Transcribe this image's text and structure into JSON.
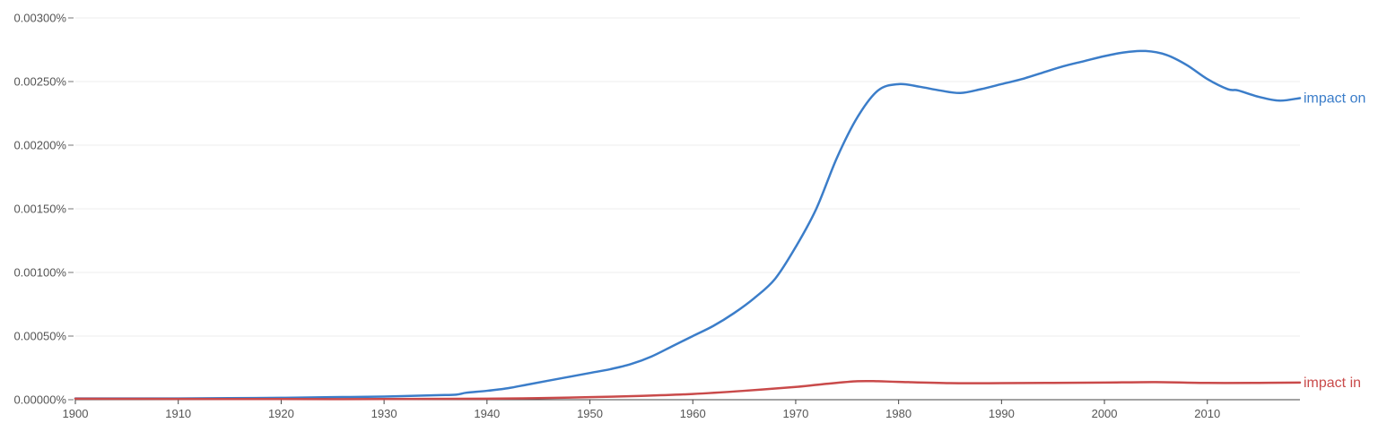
{
  "chart_data": {
    "type": "line",
    "title": "",
    "xlabel": "",
    "ylabel": "",
    "xlim": [
      1900,
      2019
    ],
    "ylim": [
      0,
      0.003
    ],
    "grid": true,
    "legend": "inline-right",
    "y_ticks": [
      {
        "value": 0.003,
        "label": "0.00300%"
      },
      {
        "value": 0.0025,
        "label": "0.00250%"
      },
      {
        "value": 0.002,
        "label": "0.00200%"
      },
      {
        "value": 0.0015,
        "label": "0.00150%"
      },
      {
        "value": 0.001,
        "label": "0.00100%"
      },
      {
        "value": 0.0005,
        "label": "0.00050%"
      },
      {
        "value": 0.0,
        "label": "0.00000%"
      }
    ],
    "x_ticks": [
      {
        "value": 1900,
        "label": "1900"
      },
      {
        "value": 1910,
        "label": "1910"
      },
      {
        "value": 1920,
        "label": "1920"
      },
      {
        "value": 1930,
        "label": "1930"
      },
      {
        "value": 1940,
        "label": "1940"
      },
      {
        "value": 1950,
        "label": "1950"
      },
      {
        "value": 1960,
        "label": "1960"
      },
      {
        "value": 1970,
        "label": "1970"
      },
      {
        "value": 1980,
        "label": "1980"
      },
      {
        "value": 1990,
        "label": "1990"
      },
      {
        "value": 2000,
        "label": "2000"
      },
      {
        "value": 2010,
        "label": "2010"
      }
    ],
    "series": [
      {
        "name": "impact on",
        "color": "#3b7dc9",
        "points": [
          [
            1900,
            1e-05
          ],
          [
            1905,
            1e-05
          ],
          [
            1910,
            1e-05
          ],
          [
            1915,
            1.2e-05
          ],
          [
            1920,
            1.5e-05
          ],
          [
            1925,
            2e-05
          ],
          [
            1930,
            2.5e-05
          ],
          [
            1935,
            3.5e-05
          ],
          [
            1937,
            4e-05
          ],
          [
            1938,
            5.5e-05
          ],
          [
            1940,
            7e-05
          ],
          [
            1942,
            9e-05
          ],
          [
            1944,
            0.00012
          ],
          [
            1946,
            0.00015
          ],
          [
            1948,
            0.00018
          ],
          [
            1950,
            0.00021
          ],
          [
            1952,
            0.00024
          ],
          [
            1954,
            0.00028
          ],
          [
            1956,
            0.00034
          ],
          [
            1958,
            0.00042
          ],
          [
            1960,
            0.0005
          ],
          [
            1962,
            0.00058
          ],
          [
            1964,
            0.00068
          ],
          [
            1966,
            0.0008
          ],
          [
            1968,
            0.00095
          ],
          [
            1970,
            0.0012
          ],
          [
            1972,
            0.0015
          ],
          [
            1974,
            0.0019
          ],
          [
            1976,
            0.00222
          ],
          [
            1978,
            0.00243
          ],
          [
            1980,
            0.00248
          ],
          [
            1982,
            0.00246
          ],
          [
            1984,
            0.00243
          ],
          [
            1986,
            0.00241
          ],
          [
            1988,
            0.00244
          ],
          [
            1990,
            0.00248
          ],
          [
            1992,
            0.00252
          ],
          [
            1994,
            0.00257
          ],
          [
            1996,
            0.00262
          ],
          [
            1998,
            0.00266
          ],
          [
            2000,
            0.0027
          ],
          [
            2002,
            0.00273
          ],
          [
            2004,
            0.00274
          ],
          [
            2006,
            0.00271
          ],
          [
            2008,
            0.00263
          ],
          [
            2010,
            0.00252
          ],
          [
            2012,
            0.00244
          ],
          [
            2013,
            0.00243
          ],
          [
            2015,
            0.00238
          ],
          [
            2017,
            0.00235
          ],
          [
            2019,
            0.00237
          ]
        ]
      },
      {
        "name": "impact in",
        "color": "#c94a4a",
        "points": [
          [
            1900,
            8e-06
          ],
          [
            1910,
            6e-06
          ],
          [
            1920,
            5e-06
          ],
          [
            1930,
            5e-06
          ],
          [
            1940,
            8e-06
          ],
          [
            1945,
            1.2e-05
          ],
          [
            1950,
            2e-05
          ],
          [
            1955,
            3e-05
          ],
          [
            1960,
            4.5e-05
          ],
          [
            1965,
            7e-05
          ],
          [
            1970,
            0.0001
          ],
          [
            1973,
            0.000125
          ],
          [
            1976,
            0.000145
          ],
          [
            1978,
            0.000145
          ],
          [
            1980,
            0.00014
          ],
          [
            1985,
            0.00013
          ],
          [
            1990,
            0.00013
          ],
          [
            1995,
            0.000132
          ],
          [
            2000,
            0.000135
          ],
          [
            2005,
            0.000138
          ],
          [
            2010,
            0.000132
          ],
          [
            2015,
            0.000132
          ],
          [
            2019,
            0.000135
          ]
        ]
      }
    ]
  }
}
